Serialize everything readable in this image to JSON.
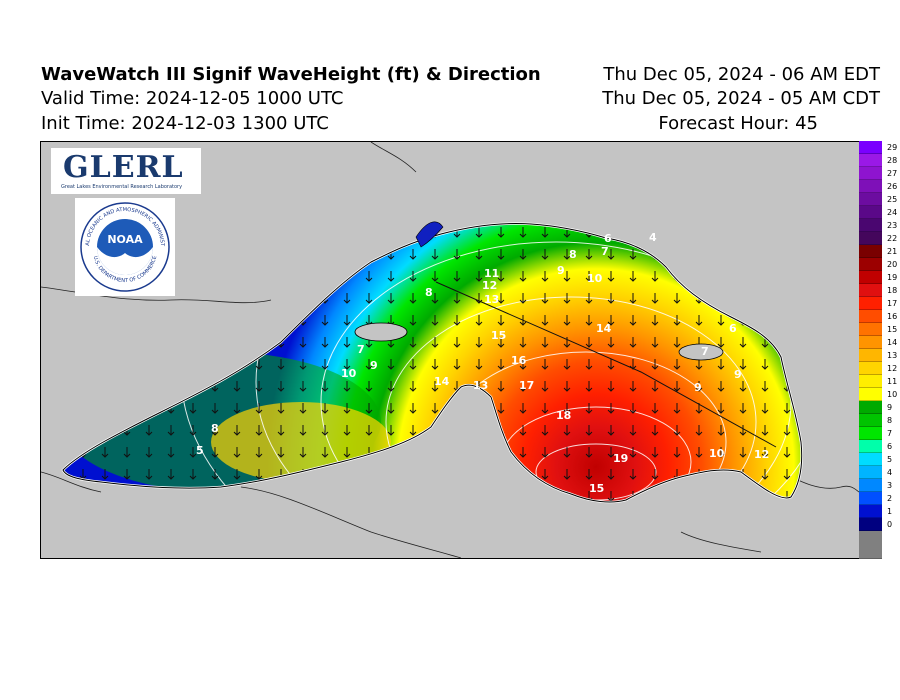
{
  "header": {
    "title": "WaveWatch III Signif WaveHeight (ft) & Direction",
    "valid_time": "Valid Time: 2024-12-05 1000 UTC",
    "init_time": "Init Time: 2024-12-03 1300 UTC",
    "local_time_edt": "Thu Dec 05, 2024 - 06 AM EDT",
    "local_time_cdt": "Thu Dec 05, 2024 - 05 AM CDT",
    "forecast_hour": "Forecast Hour: 45"
  },
  "logos": {
    "glerl": "GLERL",
    "glerl_subtitle": "Great Lakes Environmental Research Laboratory",
    "noaa": "NOAA",
    "noaa_ring_top": "NATIONAL OCEANIC AND ATMOSPHERIC ADMINISTRATION",
    "noaa_ring_bottom": "U.S. DEPARTMENT OF COMMERCE"
  },
  "legend": {
    "labels": [
      "29",
      "28",
      "27",
      "26",
      "25",
      "24",
      "23",
      "22",
      "21",
      "20",
      "19",
      "18",
      "17",
      "16",
      "15",
      "14",
      "13",
      "12",
      "11",
      "10",
      "9",
      "8",
      "7",
      "6",
      "5",
      "4",
      "3",
      "2",
      "1",
      "0"
    ],
    "colors": [
      "#7a00ff",
      "#9a19e6",
      "#8e14cf",
      "#7e10b8",
      "#6c0ca0",
      "#5a0888",
      "#4a0670",
      "#44065c",
      "#7a0000",
      "#9c0000",
      "#c00000",
      "#e01010",
      "#ff2000",
      "#ff4d00",
      "#ff7200",
      "#ff9400",
      "#ffb600",
      "#ffd400",
      "#ffee00",
      "#ffff00",
      "#00aa00",
      "#00c400",
      "#00e600",
      "#00ffaa",
      "#00dcff",
      "#00b4ff",
      "#0088ff",
      "#0050ff",
      "#0010d0",
      "#000080"
    ],
    "land_color": "#808080"
  },
  "map": {
    "land_color": "#c4c4c4",
    "contour_labels": [
      "11",
      "12",
      "13",
      "14",
      "15",
      "16",
      "17",
      "18",
      "19",
      "15",
      "13",
      "14",
      "10",
      "9",
      "8",
      "7",
      "6",
      "4",
      "9",
      "10",
      "7",
      "8",
      "9",
      "12",
      "10",
      "9",
      "7",
      "6",
      "5",
      "8"
    ],
    "wave_direction": "south"
  }
}
